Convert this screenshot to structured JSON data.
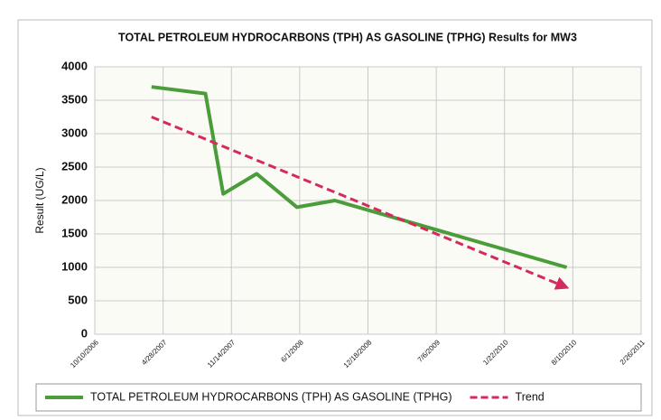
{
  "chart_data": {
    "type": "line",
    "title": "TOTAL PETROLEUM HYDROCARBONS (TPH) AS GASOLINE (TPHG) Results for MW3",
    "y_label": "Result (UG/L)",
    "xlim": [
      "2006-10-10",
      "2011-02-26"
    ],
    "xticks": [
      {
        "value": "2006-10-10",
        "label": "10/10/2006"
      },
      {
        "value": "2007-04-28",
        "label": "4/28/2007"
      },
      {
        "value": "2007-11-14",
        "label": "11/14/2007"
      },
      {
        "value": "2008-06-01",
        "label": "6/1/2008"
      },
      {
        "value": "2008-12-18",
        "label": "12/18/2008"
      },
      {
        "value": "2009-07-06",
        "label": "7/6/2009"
      },
      {
        "value": "2010-01-22",
        "label": "1/22/2010"
      },
      {
        "value": "2010-08-10",
        "label": "8/10/2010"
      },
      {
        "value": "2011-02-26",
        "label": "2/26/2011"
      }
    ],
    "ylim": [
      0,
      4000
    ],
    "yticks": [
      0,
      500,
      1000,
      1500,
      2000,
      2500,
      3000,
      3500,
      4000
    ],
    "grid": true,
    "legend": "bottom",
    "series": [
      {
        "name": "TOTAL PETROLEUM HYDROCARBONS (TPH) AS GASOLINE (TPHG)",
        "color": "#4a9d3a",
        "dashed": false,
        "x": [
          "2007-03-25",
          "2007-08-30",
          "2007-10-21",
          "2008-01-27",
          "2008-05-24",
          "2008-09-12",
          "2010-07-23"
        ],
        "values": [
          3700,
          3600,
          2100,
          2400,
          1900,
          2000,
          1000
        ]
      },
      {
        "name": "Trend",
        "color": "#d42a5c",
        "dashed": true,
        "x": [
          "2007-03-25",
          "2010-07-23"
        ],
        "values": [
          3250,
          700
        ]
      }
    ]
  }
}
